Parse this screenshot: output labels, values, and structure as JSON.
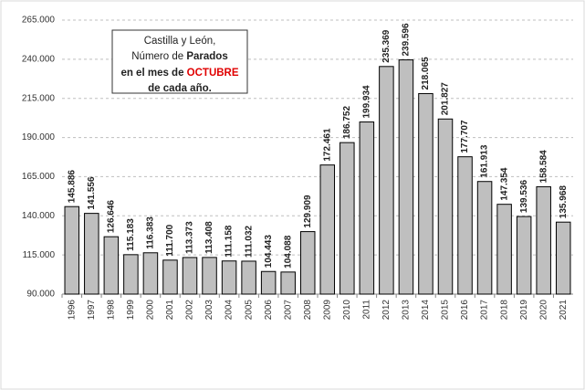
{
  "chart_data": {
    "type": "bar",
    "title": [
      [
        "Castilla y León,"
      ],
      [
        "Número de ",
        "Parados"
      ],
      [
        "en el mes de ",
        "OCTUBRE"
      ],
      [
        "de cada año."
      ]
    ],
    "categories": [
      "1996",
      "1997",
      "1998",
      "1999",
      "2000",
      "2001",
      "2002",
      "2003",
      "2004",
      "2005",
      "2006",
      "2007",
      "2008",
      "2009",
      "2010",
      "2011",
      "2012",
      "2013",
      "2014",
      "2015",
      "2016",
      "2017",
      "2018",
      "2019",
      "2020",
      "2021"
    ],
    "values": [
      145886,
      141556,
      126646,
      115183,
      116383,
      111700,
      113373,
      113408,
      111158,
      111032,
      104443,
      104088,
      129909,
      172461,
      186752,
      199934,
      235369,
      239596,
      218065,
      201827,
      177707,
      161913,
      147354,
      139536,
      158584,
      135968
    ],
    "value_labels": [
      "145.886",
      "141.556",
      "126.646",
      "115.183",
      "116.383",
      "111.700",
      "113.373",
      "113.408",
      "111.158",
      "111.032",
      "104.443",
      "104.088",
      "129.909",
      "172.461",
      "186.752",
      "199.934",
      "235.369",
      "239.596",
      "218.065",
      "201.827",
      "177.707",
      "161.913",
      "147.354",
      "139.536",
      "158.584",
      "135.968"
    ],
    "color": "#bfbfbf",
    "ylim": [
      90000,
      265000
    ],
    "yticks": [
      {
        "value": 90000,
        "label": "90.000"
      },
      {
        "value": 115000,
        "label": "115.000"
      },
      {
        "value": 140000,
        "label": "140.000"
      },
      {
        "value": 165000,
        "label": "165.000"
      },
      {
        "value": 190000,
        "label": "190.000"
      },
      {
        "value": 215000,
        "label": "215.000"
      },
      {
        "value": 240000,
        "label": "240.000"
      },
      {
        "value": 265000,
        "label": "265.000"
      }
    ],
    "grid": true
  }
}
